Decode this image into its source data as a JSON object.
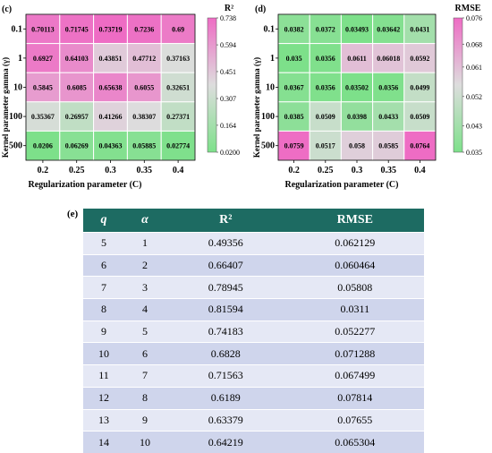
{
  "panels": {
    "c": {
      "label": "(c)",
      "ylabel": "Kernel parameter gamma (γ)",
      "xlabel": "Regularization parameter (C)",
      "colorbar_title": "R²"
    },
    "d": {
      "label": "(d)",
      "ylabel": "Kernel parameter gamma (γ)",
      "xlabel": "Regularization parameter (C)",
      "colorbar_title": "RMSE"
    },
    "e": {
      "label": "(e)"
    }
  },
  "chart_data": [
    {
      "type": "heatmap",
      "id": "c",
      "title": "",
      "xlabel": "Regularization parameter (C)",
      "ylabel": "Kernel parameter gamma (γ)",
      "x_categories": [
        "0.2",
        "0.25",
        "0.3",
        "0.35",
        "0.4"
      ],
      "y_categories": [
        "0.1",
        "1",
        "10",
        "100",
        "500"
      ],
      "values": [
        [
          0.70113,
          0.71745,
          0.73719,
          0.7236,
          0.69
        ],
        [
          0.6927,
          0.64103,
          0.43851,
          0.47712,
          0.37163
        ],
        [
          0.5845,
          0.6085,
          0.65638,
          0.6055,
          0.32651
        ],
        [
          0.35367,
          0.26957,
          0.41266,
          0.38307,
          0.27371
        ],
        [
          0.0206,
          0.06269,
          0.04363,
          0.05885,
          0.02774
        ]
      ],
      "value_labels": [
        [
          "0.70113",
          "0.71745",
          "0.73719",
          "0.7236",
          "0.69"
        ],
        [
          "0.6927",
          "0.64103",
          "0.43851",
          "0.47712",
          "0.37163"
        ],
        [
          "0.5845",
          "0.6085",
          "0.65638",
          "0.6055",
          "0.32651"
        ],
        [
          "0.35367",
          "0.26957",
          "0.41266",
          "0.38307",
          "0.27371"
        ],
        [
          "0.0206",
          "0.06269",
          "0.04363",
          "0.05885",
          "0.02774"
        ]
      ],
      "colorbar": {
        "title": "R²",
        "min": 0.02,
        "max": 0.738,
        "ticks": [
          "0.738",
          "0.594",
          "0.451",
          "0.307",
          "0.164",
          "0.0200"
        ],
        "tick_values": [
          0.738,
          0.594,
          0.451,
          0.307,
          0.164,
          0.02
        ],
        "low_color": "#7de08a",
        "mid_color": "#dddddd",
        "high_color": "#ee6cc4"
      }
    },
    {
      "type": "heatmap",
      "id": "d",
      "title": "",
      "xlabel": "Regularization parameter (C)",
      "ylabel": "Kernel parameter gamma (γ)",
      "x_categories": [
        "0.2",
        "0.25",
        "0.3",
        "0.35",
        "0.4"
      ],
      "y_categories": [
        "0.1",
        "1",
        "10",
        "100",
        "500"
      ],
      "values": [
        [
          0.0382,
          0.0372,
          0.03493,
          0.03642,
          0.0431
        ],
        [
          0.035,
          0.0356,
          0.0611,
          0.06018,
          0.0592
        ],
        [
          0.0367,
          0.0356,
          0.03502,
          0.0356,
          0.0499
        ],
        [
          0.0385,
          0.0509,
          0.0398,
          0.0433,
          0.0509
        ],
        [
          0.0759,
          0.0517,
          0.058,
          0.0585,
          0.0764
        ]
      ],
      "value_labels": [
        [
          "0.0382",
          "0.0372",
          "0.03493",
          "0.03642",
          "0.0431"
        ],
        [
          "0.035",
          "0.0356",
          "0.0611",
          "0.06018",
          "0.0592"
        ],
        [
          "0.0367",
          "0.0356",
          "0.03502",
          "0.0356",
          "0.0499"
        ],
        [
          "0.0385",
          "0.0509",
          "0.0398",
          "0.0433",
          "0.0509"
        ],
        [
          "0.0759",
          "0.0517",
          "0.058",
          "0.0585",
          "0.0764"
        ]
      ],
      "colorbar": {
        "title": "RMSE",
        "min": 0.035,
        "max": 0.076,
        "ticks": [
          "0.076",
          "0.068",
          "0.061",
          "0.052",
          "0.043",
          "0.035"
        ],
        "tick_values": [
          0.076,
          0.068,
          0.061,
          0.052,
          0.043,
          0.035
        ],
        "low_color": "#7de08a",
        "mid_color": "#dddddd",
        "high_color": "#ee6cc4"
      }
    },
    {
      "type": "table",
      "id": "e",
      "columns": [
        "q",
        "α",
        "R²",
        "RMSE"
      ],
      "rows": [
        [
          "5",
          "1",
          "0.49356",
          "0.062129"
        ],
        [
          "6",
          "2",
          "0.66407",
          "0.060464"
        ],
        [
          "7",
          "3",
          "0.78945",
          "0.05808"
        ],
        [
          "8",
          "4",
          "0.81594",
          "0.0311"
        ],
        [
          "9",
          "5",
          "0.74183",
          "0.052277"
        ],
        [
          "10",
          "6",
          "0.6828",
          "0.071288"
        ],
        [
          "11",
          "7",
          "0.71563",
          "0.067499"
        ],
        [
          "12",
          "8",
          "0.6189",
          "0.07814"
        ],
        [
          "13",
          "9",
          "0.63379",
          "0.07655"
        ],
        [
          "14",
          "10",
          "0.64219",
          "0.065304"
        ]
      ]
    }
  ],
  "table_header_color": "#1d6b62"
}
